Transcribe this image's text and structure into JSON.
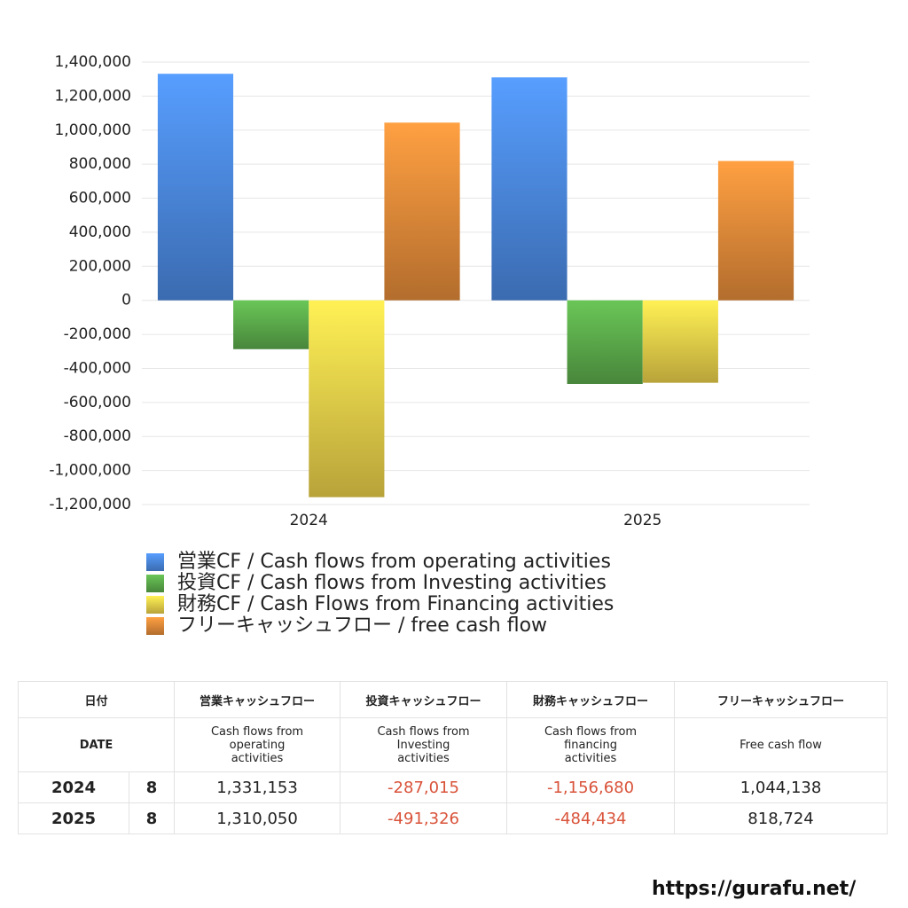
{
  "chart_data": {
    "type": "bar",
    "categories": [
      "2024",
      "2025"
    ],
    "series": [
      {
        "name": "営業CF / Cash flows from operating activities",
        "color": "#4a86dc",
        "values": [
          1331153,
          1310050
        ]
      },
      {
        "name": "投資CF / Cash flows from Investing activities",
        "color": "#5aa84a",
        "values": [
          -287015,
          -491326
        ]
      },
      {
        "name": "財務CF / Cash Flows from Financing activities",
        "color": "#e6cc48",
        "values": [
          -1156680,
          -484434
        ]
      },
      {
        "name": "フリーキャッシュフロー / free cash flow",
        "color": "#e08838",
        "values": [
          1044138,
          818724
        ]
      }
    ],
    "ylim": [
      -1200000,
      1400000
    ],
    "yticks": [
      {
        "value": -1200000,
        "label": "-1,200,000"
      },
      {
        "value": -1000000,
        "label": "-1,000,000"
      },
      {
        "value": -800000,
        "label": "-800,000"
      },
      {
        "value": -600000,
        "label": "-600,000"
      },
      {
        "value": -400000,
        "label": "-400,000"
      },
      {
        "value": -200000,
        "label": "-200,000"
      },
      0,
      {
        "value": 200000,
        "label": "200,000"
      },
      {
        "value": 400000,
        "label": "400,000"
      },
      {
        "value": 600000,
        "label": "600,000"
      },
      {
        "value": 800000,
        "label": "800,000"
      },
      {
        "value": 1000000,
        "label": "1,000,000"
      },
      {
        "value": 1200000,
        "label": "1,200,000"
      },
      {
        "value": 1400000,
        "label": "1,400,000"
      }
    ],
    "grid": true,
    "legend": "bottom"
  },
  "table": {
    "header": [
      "日付",
      "営業キャッシュフロー",
      "投資キャッシュフロー",
      "財務キャッシュフロー",
      "フリーキャッシュフロー"
    ],
    "subheader": [
      "DATE",
      "Cash flows from operating activities",
      "Cash flows from Investing activities",
      "Cash flows from financing activities",
      "Free cash flow"
    ],
    "rows": [
      [
        "2024",
        "8",
        "1,331,153",
        "-287,015",
        "-1,156,680",
        "1,044,138"
      ],
      [
        "2025",
        "8",
        "1,310,050",
        "-491,326",
        "-484,434",
        "818,724"
      ]
    ]
  },
  "footer": "https://gurafu.net/"
}
